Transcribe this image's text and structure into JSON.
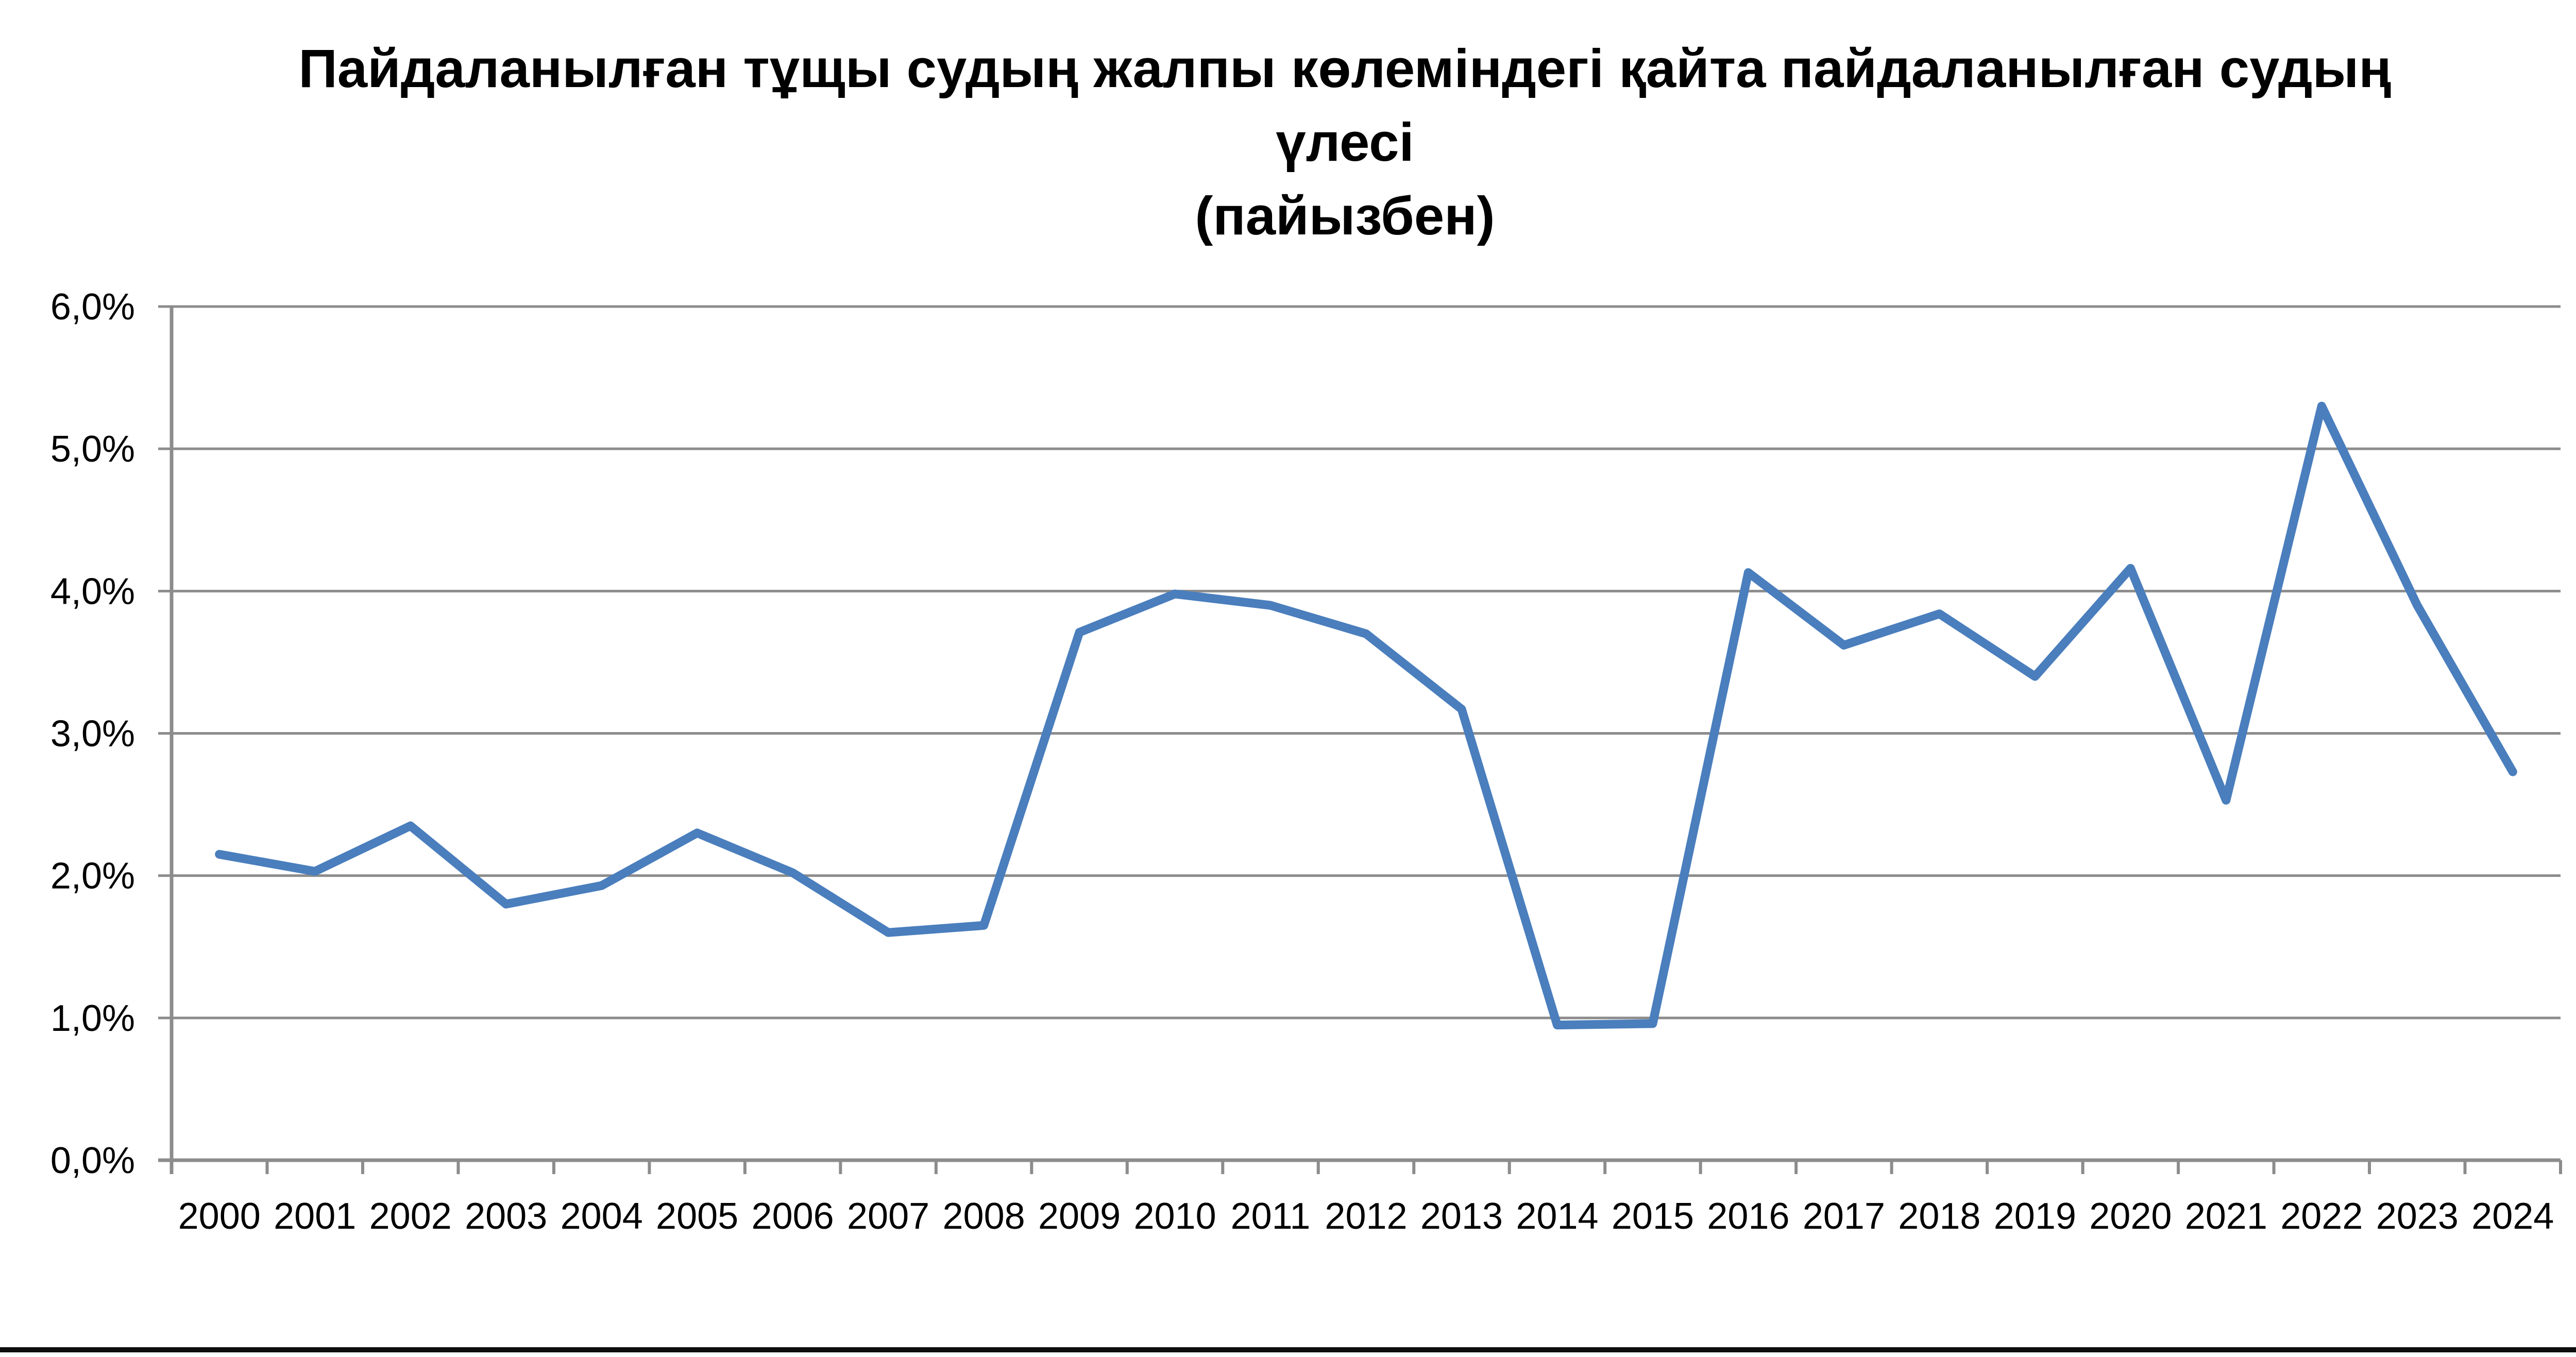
{
  "title": {
    "line1": "Пайдаланылған тұщы судың жалпы көлеміндегі қайта пайдаланылған судың",
    "line2": "үлесі",
    "line3": "(пайызбен)"
  },
  "chart_data": {
    "type": "line",
    "title": "Пайдаланылған тұщы судың жалпы көлеміндегі қайта пайдаланылған судың үлесі (пайызбен)",
    "categories": [
      "2000",
      "2001",
      "2002",
      "2003",
      "2004",
      "2005",
      "2006",
      "2007",
      "2008",
      "2009",
      "2010",
      "2011",
      "2012",
      "2013",
      "2014",
      "2015",
      "2016",
      "2017",
      "2018",
      "2019",
      "2020",
      "2021",
      "2022",
      "2023",
      "2024"
    ],
    "values": [
      2.15,
      2.03,
      2.35,
      1.8,
      1.93,
      2.3,
      2.02,
      1.6,
      1.65,
      3.71,
      3.98,
      3.9,
      3.7,
      3.17,
      0.95,
      0.96,
      4.13,
      3.62,
      3.84,
      3.4,
      4.16,
      2.53,
      5.3,
      3.9,
      2.73
    ],
    "xlabel": "",
    "ylabel": "",
    "ylim": [
      0,
      6
    ],
    "y_tick_step": 1,
    "y_tick_labels": [
      "0,0%",
      "1,0%",
      "2,0%",
      "3,0%",
      "4,0%",
      "5,0%",
      "6,0%"
    ],
    "grid": true,
    "legend": "none",
    "colors": {
      "series_line": "#4A7EBD",
      "gridline": "#8C8C8C",
      "axis": "#8C8C8C",
      "text": "#000000",
      "background": "#FFFFFF",
      "bottom_rule": "#0D0D0D"
    }
  }
}
